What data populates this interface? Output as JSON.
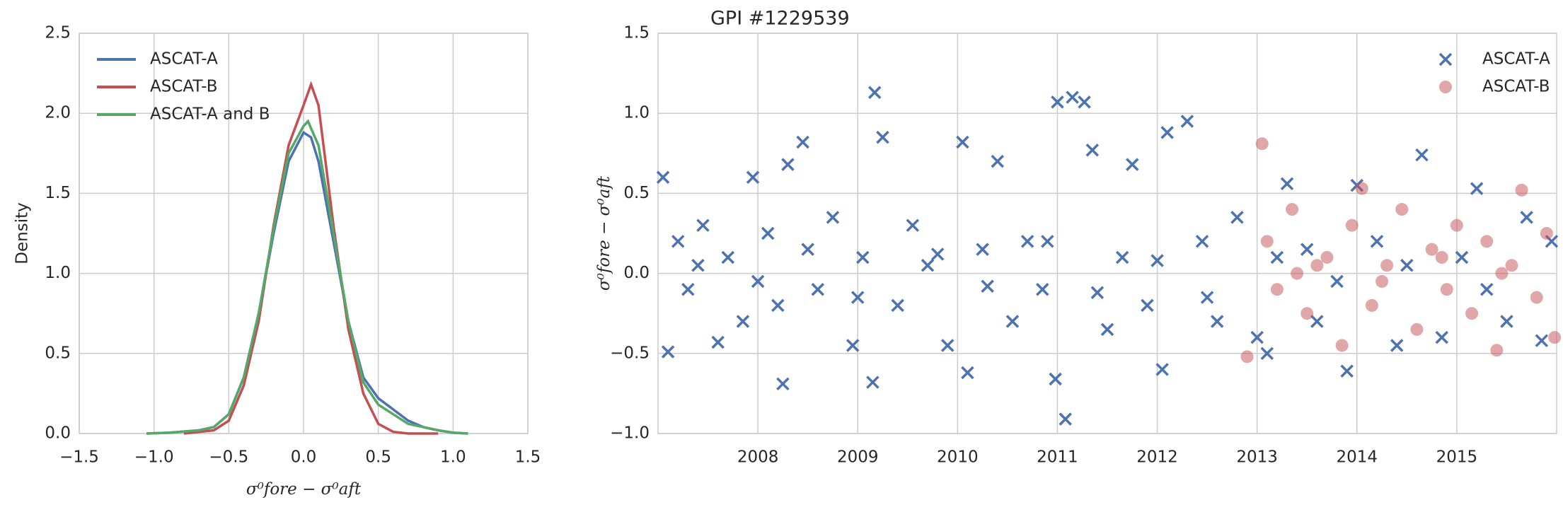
{
  "chart_data": [
    {
      "type": "line",
      "ylabel": "Density",
      "xlabel": "σ⁰fore − σ⁰aft",
      "xlim": [
        -1.5,
        1.5
      ],
      "ylim": [
        0,
        2.5
      ],
      "xticks": [
        {
          "value": -1.5,
          "label": "−1.5"
        },
        {
          "value": -1.0,
          "label": "−1.0"
        },
        {
          "value": -0.5,
          "label": "−0.5"
        },
        {
          "value": 0,
          "label": "0.0"
        },
        {
          "value": 0.5,
          "label": "0.5"
        },
        {
          "value": 1.0,
          "label": "1.0"
        },
        {
          "value": 1.5,
          "label": "1.5"
        }
      ],
      "yticks": [
        {
          "value": 0,
          "label": "0.0"
        },
        {
          "value": 0.5,
          "label": "0.5"
        },
        {
          "value": 1.0,
          "label": "1.0"
        },
        {
          "value": 1.5,
          "label": "1.5"
        },
        {
          "value": 2.0,
          "label": "2.0"
        },
        {
          "value": 2.5,
          "label": "2.5"
        }
      ],
      "grid": true,
      "legend": "upper left",
      "series": [
        {
          "name": "ASCAT-A",
          "color": "#4c72b0",
          "x": [
            -1.05,
            -0.9,
            -0.7,
            -0.6,
            -0.5,
            -0.4,
            -0.3,
            -0.2,
            -0.1,
            0,
            0.05,
            0.1,
            0.2,
            0.3,
            0.4,
            0.5,
            0.6,
            0.7,
            0.8,
            0.9,
            1.0,
            1.1
          ],
          "values": [
            0,
            0.005,
            0.02,
            0.04,
            0.12,
            0.35,
            0.75,
            1.25,
            1.7,
            1.88,
            1.85,
            1.7,
            1.2,
            0.7,
            0.35,
            0.22,
            0.15,
            0.08,
            0.04,
            0.02,
            0.005,
            0
          ]
        },
        {
          "name": "ASCAT-B",
          "color": "#c44e52",
          "x": [
            -0.8,
            -0.6,
            -0.5,
            -0.4,
            -0.3,
            -0.2,
            -0.1,
            0,
            0.05,
            0.1,
            0.2,
            0.3,
            0.4,
            0.5,
            0.6,
            0.7,
            0.8,
            0.9
          ],
          "values": [
            0,
            0.02,
            0.08,
            0.3,
            0.7,
            1.3,
            1.8,
            2.05,
            2.18,
            2.05,
            1.3,
            0.65,
            0.25,
            0.06,
            0.01,
            0,
            0,
            0
          ]
        },
        {
          "name": "ASCAT-A and B",
          "color": "#55a868",
          "x": [
            -1.05,
            -0.9,
            -0.7,
            -0.6,
            -0.5,
            -0.4,
            -0.3,
            -0.2,
            -0.1,
            0,
            0.03,
            0.1,
            0.2,
            0.3,
            0.4,
            0.5,
            0.6,
            0.7,
            0.8,
            0.9,
            1.0,
            1.1
          ],
          "values": [
            0,
            0.005,
            0.02,
            0.04,
            0.12,
            0.35,
            0.75,
            1.28,
            1.75,
            1.92,
            1.95,
            1.8,
            1.25,
            0.7,
            0.32,
            0.18,
            0.12,
            0.06,
            0.04,
            0.02,
            0.005,
            0
          ]
        }
      ]
    },
    {
      "type": "scatter",
      "title": "GPI #1229539",
      "ylabel": "σ⁰fore − σ⁰aft",
      "xlim": [
        2007,
        2016
      ],
      "ylim": [
        -1.0,
        1.5
      ],
      "xticks": [
        2008,
        2009,
        2010,
        2011,
        2012,
        2013,
        2014,
        2015
      ],
      "yticks": [
        {
          "value": -1.0,
          "label": "−1.0"
        },
        {
          "value": -0.5,
          "label": "−0.5"
        },
        {
          "value": 0,
          "label": "0.0"
        },
        {
          "value": 0.5,
          "label": "0.5"
        },
        {
          "value": 1.0,
          "label": "1.0"
        },
        {
          "value": 1.5,
          "label": "1.5"
        }
      ],
      "grid": true,
      "legend": "upper right",
      "series": [
        {
          "name": "ASCAT-A",
          "color": "#4c72b0",
          "marker": "x",
          "x": [
            2007.05,
            2007.1,
            2007.2,
            2007.3,
            2007.45,
            2007.6,
            2007.7,
            2007.85,
            2007.95,
            2008.1,
            2008.2,
            2008.25,
            2008.3,
            2008.45,
            2008.6,
            2008.75,
            2008.95,
            2009.05,
            2009.15,
            2009.17,
            2009.25,
            2009.4,
            2009.55,
            2009.7,
            2009.9,
            2010.05,
            2010.1,
            2010.25,
            2010.4,
            2010.55,
            2010.7,
            2010.85,
            2010.98,
            2011.0,
            2011.08,
            2011.15,
            2011.27,
            2011.35,
            2011.5,
            2011.65,
            2011.75,
            2011.9,
            2012.05,
            2012.1,
            2012.3,
            2012.45,
            2012.6,
            2012.8,
            2013.0,
            2013.1,
            2013.3,
            2013.5,
            2013.6,
            2013.9,
            2014.0,
            2014.2,
            2014.4,
            2014.65,
            2014.85,
            2015.05,
            2015.2,
            2015.5,
            2015.7,
            2015.85,
            2015.95,
            2007.4,
            2008.0,
            2008.5,
            2009.0,
            2009.8,
            2010.3,
            2010.9,
            2011.4,
            2012.0,
            2012.5,
            2013.2,
            2013.8,
            2014.5,
            2015.3
          ],
          "values": [
            0.6,
            -0.49,
            0.2,
            -0.1,
            0.3,
            -0.43,
            0.1,
            -0.3,
            0.6,
            0.25,
            -0.2,
            -0.69,
            0.68,
            0.82,
            -0.1,
            0.35,
            -0.45,
            0.1,
            -0.68,
            1.13,
            0.85,
            -0.2,
            0.3,
            0.05,
            -0.45,
            0.82,
            -0.62,
            0.15,
            0.7,
            -0.3,
            0.2,
            -0.1,
            -0.66,
            1.07,
            -0.91,
            1.1,
            1.07,
            0.77,
            -0.35,
            0.1,
            0.68,
            -0.2,
            -0.6,
            0.88,
            0.95,
            0.2,
            -0.3,
            0.35,
            -0.4,
            -0.5,
            0.56,
            0.15,
            -0.3,
            -0.61,
            0.55,
            0.2,
            -0.45,
            0.74,
            -0.4,
            0.1,
            0.53,
            -0.3,
            0.35,
            -0.42,
            0.2,
            0.05,
            -0.05,
            0.15,
            -0.15,
            0.12,
            -0.08,
            0.2,
            -0.12,
            0.08,
            -0.15,
            0.1,
            -0.05,
            0.05,
            -0.1
          ]
        },
        {
          "name": "ASCAT-B",
          "color": "#c44e52",
          "marker": "o",
          "x": [
            2012.9,
            2013.05,
            2013.1,
            2013.2,
            2013.35,
            2013.5,
            2013.7,
            2013.85,
            2013.95,
            2014.05,
            2014.15,
            2014.3,
            2014.45,
            2014.6,
            2014.75,
            2014.9,
            2015.0,
            2015.15,
            2015.3,
            2015.4,
            2015.55,
            2015.65,
            2015.8,
            2015.9,
            2015.98,
            2013.4,
            2013.6,
            2014.25,
            2014.85,
            2015.45
          ],
          "values": [
            -0.52,
            0.81,
            0.2,
            -0.1,
            0.4,
            -0.25,
            0.1,
            -0.45,
            0.3,
            0.53,
            -0.2,
            0.05,
            0.4,
            -0.35,
            0.15,
            -0.1,
            0.3,
            -0.25,
            0.2,
            -0.48,
            0.05,
            0.52,
            -0.15,
            0.25,
            -0.4,
            0.0,
            0.05,
            -0.05,
            0.1,
            0.0
          ]
        }
      ]
    }
  ]
}
